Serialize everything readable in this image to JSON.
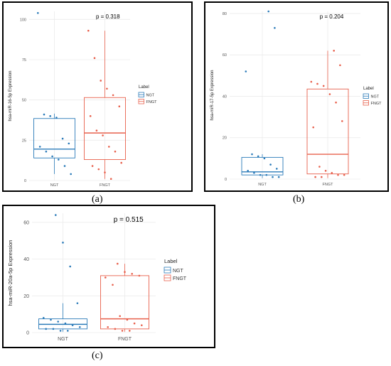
{
  "captions": [
    "(a)",
    "(b)",
    "(c)"
  ],
  "chart_data": [
    {
      "type": "box",
      "ylabel": "hsa-miR-16-5p Expression",
      "categories": [
        "NGT",
        "FNGT"
      ],
      "pvalue_text": "p = 0.318",
      "legend_title": "Label",
      "legend_position": "right",
      "ylim": [
        0,
        105
      ],
      "yticks": [
        0,
        25,
        50,
        75,
        100
      ],
      "grid": true,
      "colors": {
        "NGT": "#2b7bb9",
        "FNGT": "#e8604c"
      },
      "boxes": [
        {
          "group": "NGT",
          "q1": 14,
          "median": 19.5,
          "q3": 38.5,
          "whisker_low": 4,
          "whisker_high": 41.5
        },
        {
          "group": "FNGT",
          "q1": 13,
          "median": 29.5,
          "q3": 51.5,
          "whisker_low": 1,
          "whisker_high": 93
        }
      ],
      "points": {
        "NGT": [
          104,
          41,
          40,
          39,
          26,
          23,
          21,
          18,
          15,
          13,
          9,
          4
        ],
        "FNGT": [
          93,
          76,
          62,
          57,
          53,
          46,
          40,
          31,
          28,
          21,
          18,
          11,
          9,
          7,
          5,
          1
        ]
      }
    },
    {
      "type": "box",
      "ylabel": "hsa-miR-17-5p Expression",
      "categories": [
        "NGT",
        "FNGT"
      ],
      "pvalue_text": "p = 0.204",
      "legend_title": "Label",
      "legend_position": "right",
      "ylim": [
        0,
        81
      ],
      "yticks": [
        0,
        20,
        40,
        60,
        80
      ],
      "grid": true,
      "colors": {
        "NGT": "#2b7bb9",
        "FNGT": "#e8604c"
      },
      "boxes": [
        {
          "group": "NGT",
          "q1": 2,
          "median": 3.5,
          "q3": 10.5,
          "whisker_low": 0.5,
          "whisker_high": 12
        },
        {
          "group": "FNGT",
          "q1": 2.5,
          "median": 12,
          "q3": 43.5,
          "whisker_low": 0.5,
          "whisker_high": 62
        }
      ],
      "points": {
        "NGT": [
          81,
          73,
          52,
          12,
          11,
          10,
          7,
          5,
          4,
          3,
          2,
          2,
          1,
          1
        ],
        "FNGT": [
          62,
          55,
          47,
          46,
          45,
          41,
          37,
          28,
          25,
          6,
          4,
          3,
          2,
          2,
          1,
          1
        ]
      }
    },
    {
      "type": "box",
      "ylabel": "hsa-miR-20a-5p Expression",
      "categories": [
        "NGT",
        "FNGT"
      ],
      "pvalue_text": "p = 0.515",
      "legend_title": "Label",
      "legend_position": "right",
      "ylim": [
        0,
        65
      ],
      "yticks": [
        0,
        20,
        40,
        60
      ],
      "grid": true,
      "colors": {
        "NGT": "#2b7bb9",
        "FNGT": "#e8604c"
      },
      "boxes": [
        {
          "group": "NGT",
          "q1": 2,
          "median": 4.5,
          "q3": 7.5,
          "whisker_low": 0.5,
          "whisker_high": 16
        },
        {
          "group": "FNGT",
          "q1": 2,
          "median": 7.5,
          "q3": 31,
          "whisker_low": 0.5,
          "whisker_high": 37.5
        }
      ],
      "points": {
        "NGT": [
          64,
          49,
          36,
          16,
          8,
          7,
          6,
          5,
          4,
          3,
          2,
          2,
          1,
          1
        ],
        "FNGT": [
          37.5,
          33,
          32,
          31,
          30,
          26,
          9,
          7,
          5,
          4,
          3,
          2,
          1,
          1
        ]
      }
    }
  ]
}
